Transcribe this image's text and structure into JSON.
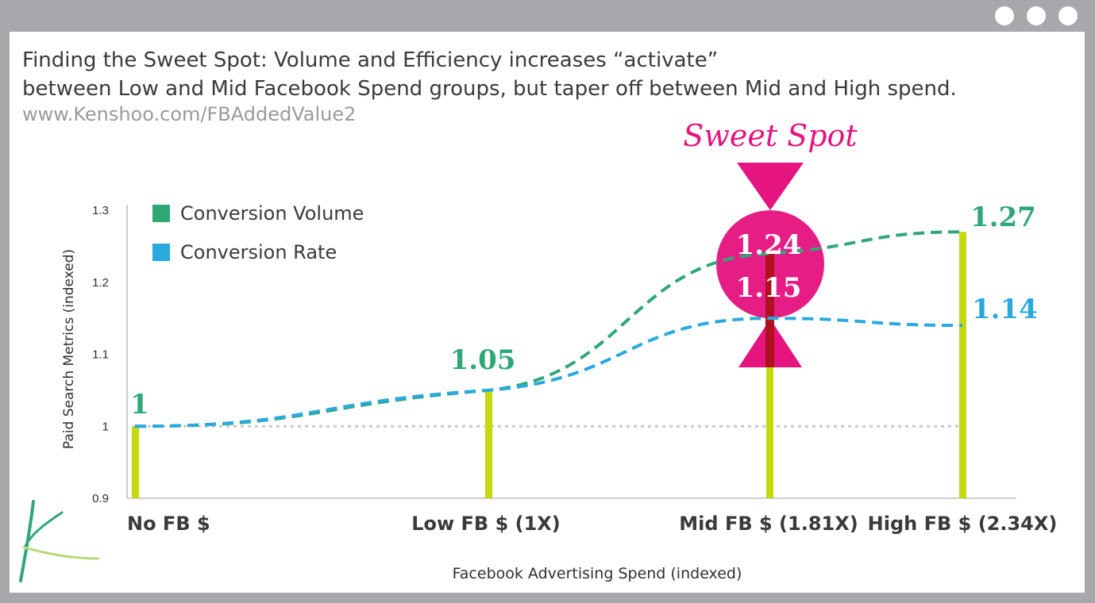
{
  "window": {
    "controls": [
      "dot",
      "dot",
      "dot"
    ]
  },
  "header": {
    "title_line1": "Finding the Sweet Spot: Volume and Efficiency increases “activate”",
    "title_line2": "between Low and Mid Facebook Spend groups, but taper off between Mid and High spend.",
    "url": "www.Kenshoo.com/FBAddedValue2"
  },
  "colors": {
    "volume": "#2fa876",
    "rate": "#2aa9df",
    "bar": "#c6d80f",
    "sweet": "#e5147f",
    "baseline": "#c9c9c9",
    "axis_text": "#2f2f2f"
  },
  "chart_data": {
    "type": "line",
    "xlabel": "Facebook Advertising Spend (indexed)",
    "ylabel": "Paid Search Metrics (indexed)",
    "ylim": [
      0.9,
      1.3
    ],
    "yticks": [
      0.9,
      1,
      1.1,
      1.2,
      1.3
    ],
    "ytick_labels": [
      "0.9",
      "1",
      "1.1",
      "1.2",
      "1.3"
    ],
    "categories": [
      "No FB $",
      "Low FB $ (1X)",
      "Mid FB $ (1.81X)",
      "High FB $ (2.34X)"
    ],
    "x": [
      0,
      1,
      1.81,
      2.34
    ],
    "series": [
      {
        "name": "Conversion Volume",
        "values": [
          1.0,
          1.05,
          1.24,
          1.27
        ]
      },
      {
        "name": "Conversion Rate",
        "values": [
          1.0,
          1.05,
          1.15,
          1.14
        ]
      }
    ],
    "data_labels": [
      {
        "text": "1",
        "series": "Conversion Volume",
        "index": 0
      },
      {
        "text": "1.05",
        "series": "Conversion Volume",
        "index": 1
      },
      {
        "text": "1.24",
        "series": "Conversion Volume",
        "index": 2
      },
      {
        "text": "1.15",
        "series": "Conversion Rate",
        "index": 2
      },
      {
        "text": "1.27",
        "series": "Conversion Volume",
        "index": 3
      },
      {
        "text": "1.14",
        "series": "Conversion Rate",
        "index": 3
      }
    ],
    "baseline": 1,
    "legend": "top-left",
    "annotation": "Sweet Spot",
    "grid": false
  }
}
